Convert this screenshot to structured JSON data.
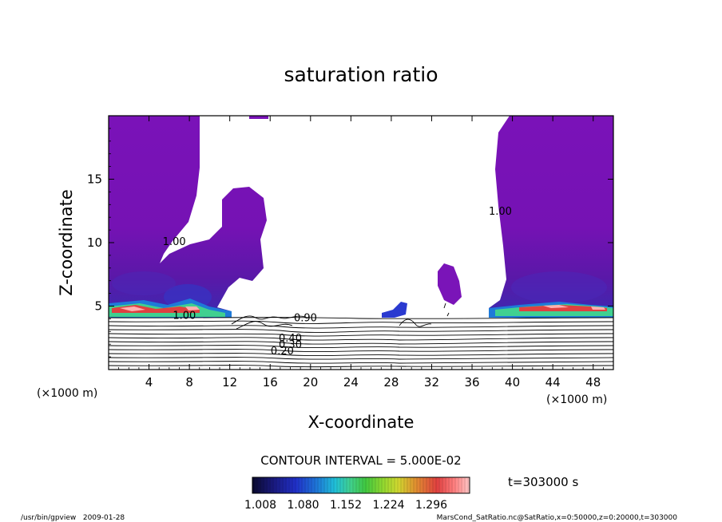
{
  "chart_data": {
    "type": "heatmap",
    "title": "saturation ratio",
    "xlabel": "X-coordinate",
    "ylabel": "Z-coordinate",
    "x_unit": "(×1000 m)",
    "z_unit": "(×1000 m)",
    "xlim": [
      0,
      50
    ],
    "ylim": [
      0,
      20
    ],
    "x_ticks": [
      4,
      8,
      12,
      16,
      20,
      24,
      28,
      32,
      36,
      40,
      44,
      48
    ],
    "y_ticks": [
      5,
      10,
      15
    ],
    "contour_interval_text": "CONTOUR INTERVAL = 5.000E-02",
    "contour_labels": [
      {
        "text": "1.00",
        "x": 6.5,
        "z": 9.8
      },
      {
        "text": "1.00",
        "x": 38.8,
        "z": 12.2
      },
      {
        "text": "1.00",
        "x": 7.5,
        "z": 4.0
      },
      {
        "text": "0.90",
        "x": 19.5,
        "z": 3.8
      },
      {
        "text": "0.40",
        "x": 18.0,
        "z": 2.2
      },
      {
        "text": "0.30",
        "x": 18.0,
        "z": 1.7
      },
      {
        "text": "0.20",
        "x": 17.2,
        "z": 1.2
      }
    ],
    "colorbar": {
      "tick_labels": [
        "1.008",
        "1.080",
        "1.152",
        "1.224",
        "1.296"
      ],
      "colors": [
        "#0a0a2e",
        "#1a1a80",
        "#2030c8",
        "#1e7ad8",
        "#20c0d8",
        "#40d090",
        "#40c840",
        "#90d830",
        "#d0d830",
        "#e09030",
        "#e04040",
        "#ff8080",
        "#ffc8c8"
      ]
    },
    "time_label": "t=303000 s",
    "grid": false
  },
  "footer": {
    "left": "/usr/bin/gpview   2009-01-28",
    "right": "MarsCond_SatRatio.nc@SatRatio,x=0:50000,z=0:20000,t=303000"
  }
}
